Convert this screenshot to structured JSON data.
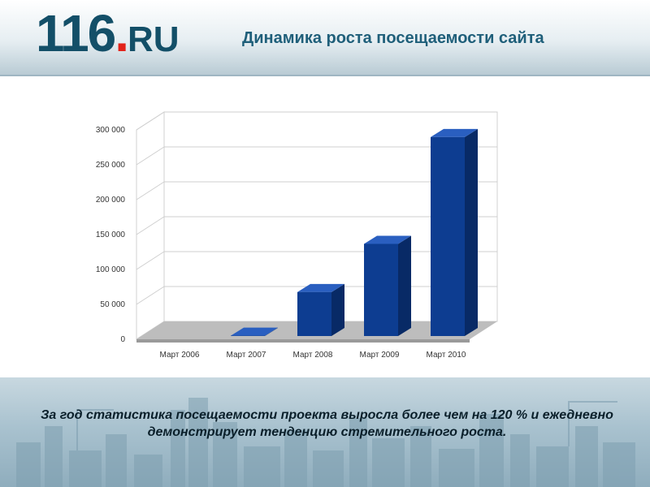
{
  "header": {
    "logo_number": "116",
    "logo_dot": ".",
    "logo_suffix": "RU",
    "title": "Динамика роста посещаемости сайта"
  },
  "chart_data": {
    "type": "bar",
    "categories": [
      "Март 2006",
      "Март 2007",
      "Март 2008",
      "Март 2009",
      "Март 2010"
    ],
    "values": [
      0,
      500,
      63000,
      132000,
      285000
    ],
    "ylim": [
      0,
      300000
    ],
    "yticks": [
      0,
      50000,
      100000,
      150000,
      200000,
      250000,
      300000
    ],
    "ytick_labels": [
      "0",
      "50 000",
      "100 000",
      "150 000",
      "200 000",
      "250 000",
      "300 000"
    ],
    "title": "",
    "xlabel": "",
    "ylabel": "",
    "grid": true,
    "bar_color": "#0d3d91"
  },
  "footer": {
    "text": "За год статистика посещаемости проекта выросла более чем на 120 % и ежедневно демонстрирует тенденцию стремительного роста."
  }
}
